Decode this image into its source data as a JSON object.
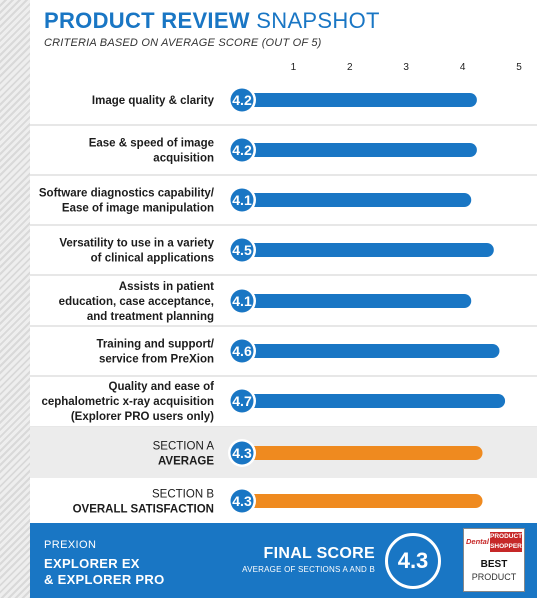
{
  "header": {
    "title_bold": "PRODUCT REVIEW",
    "title_light": "SNAPSHOT",
    "subtitle": "CRITERIA BASED ON AVERAGE SCORE (OUT OF 5)"
  },
  "chart_data": {
    "type": "bar",
    "orientation": "horizontal",
    "x_ticks": [
      "1",
      "2",
      "3",
      "4",
      "5"
    ],
    "xlim": [
      0,
      5
    ],
    "grid": false,
    "categories": [
      [
        "Image quality & clarity"
      ],
      [
        "Ease & speed of image",
        "acquisition"
      ],
      [
        "Software diagnostics capability/",
        "Ease of image manipulation"
      ],
      [
        "Versatility to use in a variety",
        "of clinical applications"
      ],
      [
        "Assists in patient",
        "education, case acceptance,",
        "and treatment planning"
      ],
      [
        "Training and support/",
        "service from PreXion"
      ],
      [
        "Quality and ease of",
        "cephalometric x-ray acquisition",
        "(Explorer PRO users only)"
      ],
      [
        "SECTION A",
        "AVERAGE"
      ],
      [
        "SECTION B",
        "OVERALL SATISFACTION"
      ]
    ],
    "values": [
      4.2,
      4.2,
      4.1,
      4.5,
      4.1,
      4.6,
      4.7,
      4.3,
      4.3
    ],
    "value_labels": [
      "4.2",
      "4.2",
      "4.1",
      "4.5",
      "4.1",
      "4.6",
      "4.7",
      "4.3",
      "4.3"
    ],
    "bar_colors": [
      "#1976c4",
      "#1976c4",
      "#1976c4",
      "#1976c4",
      "#1976c4",
      "#1976c4",
      "#1976c4",
      "#ef8a1f",
      "#ef8a1f"
    ]
  },
  "footer": {
    "company": "PREXION",
    "product_line1": "EXPLORER EX",
    "product_line2": "& EXPLORER PRO",
    "final_title": "FINAL SCORE",
    "final_subtitle": "AVERAGE OF SECTIONS A AND B",
    "final_score": "4.3",
    "badge_brand": "Dental",
    "badge_ps_line1": "PRODUCT",
    "badge_ps_line2": "SHOPPER",
    "badge_best": "BEST",
    "badge_product": "PRODUCT"
  },
  "colors": {
    "accent_blue": "#1976c4",
    "accent_orange": "#ef8a1f",
    "row_gray": "#ececec",
    "divider": "#cfcfcf"
  }
}
